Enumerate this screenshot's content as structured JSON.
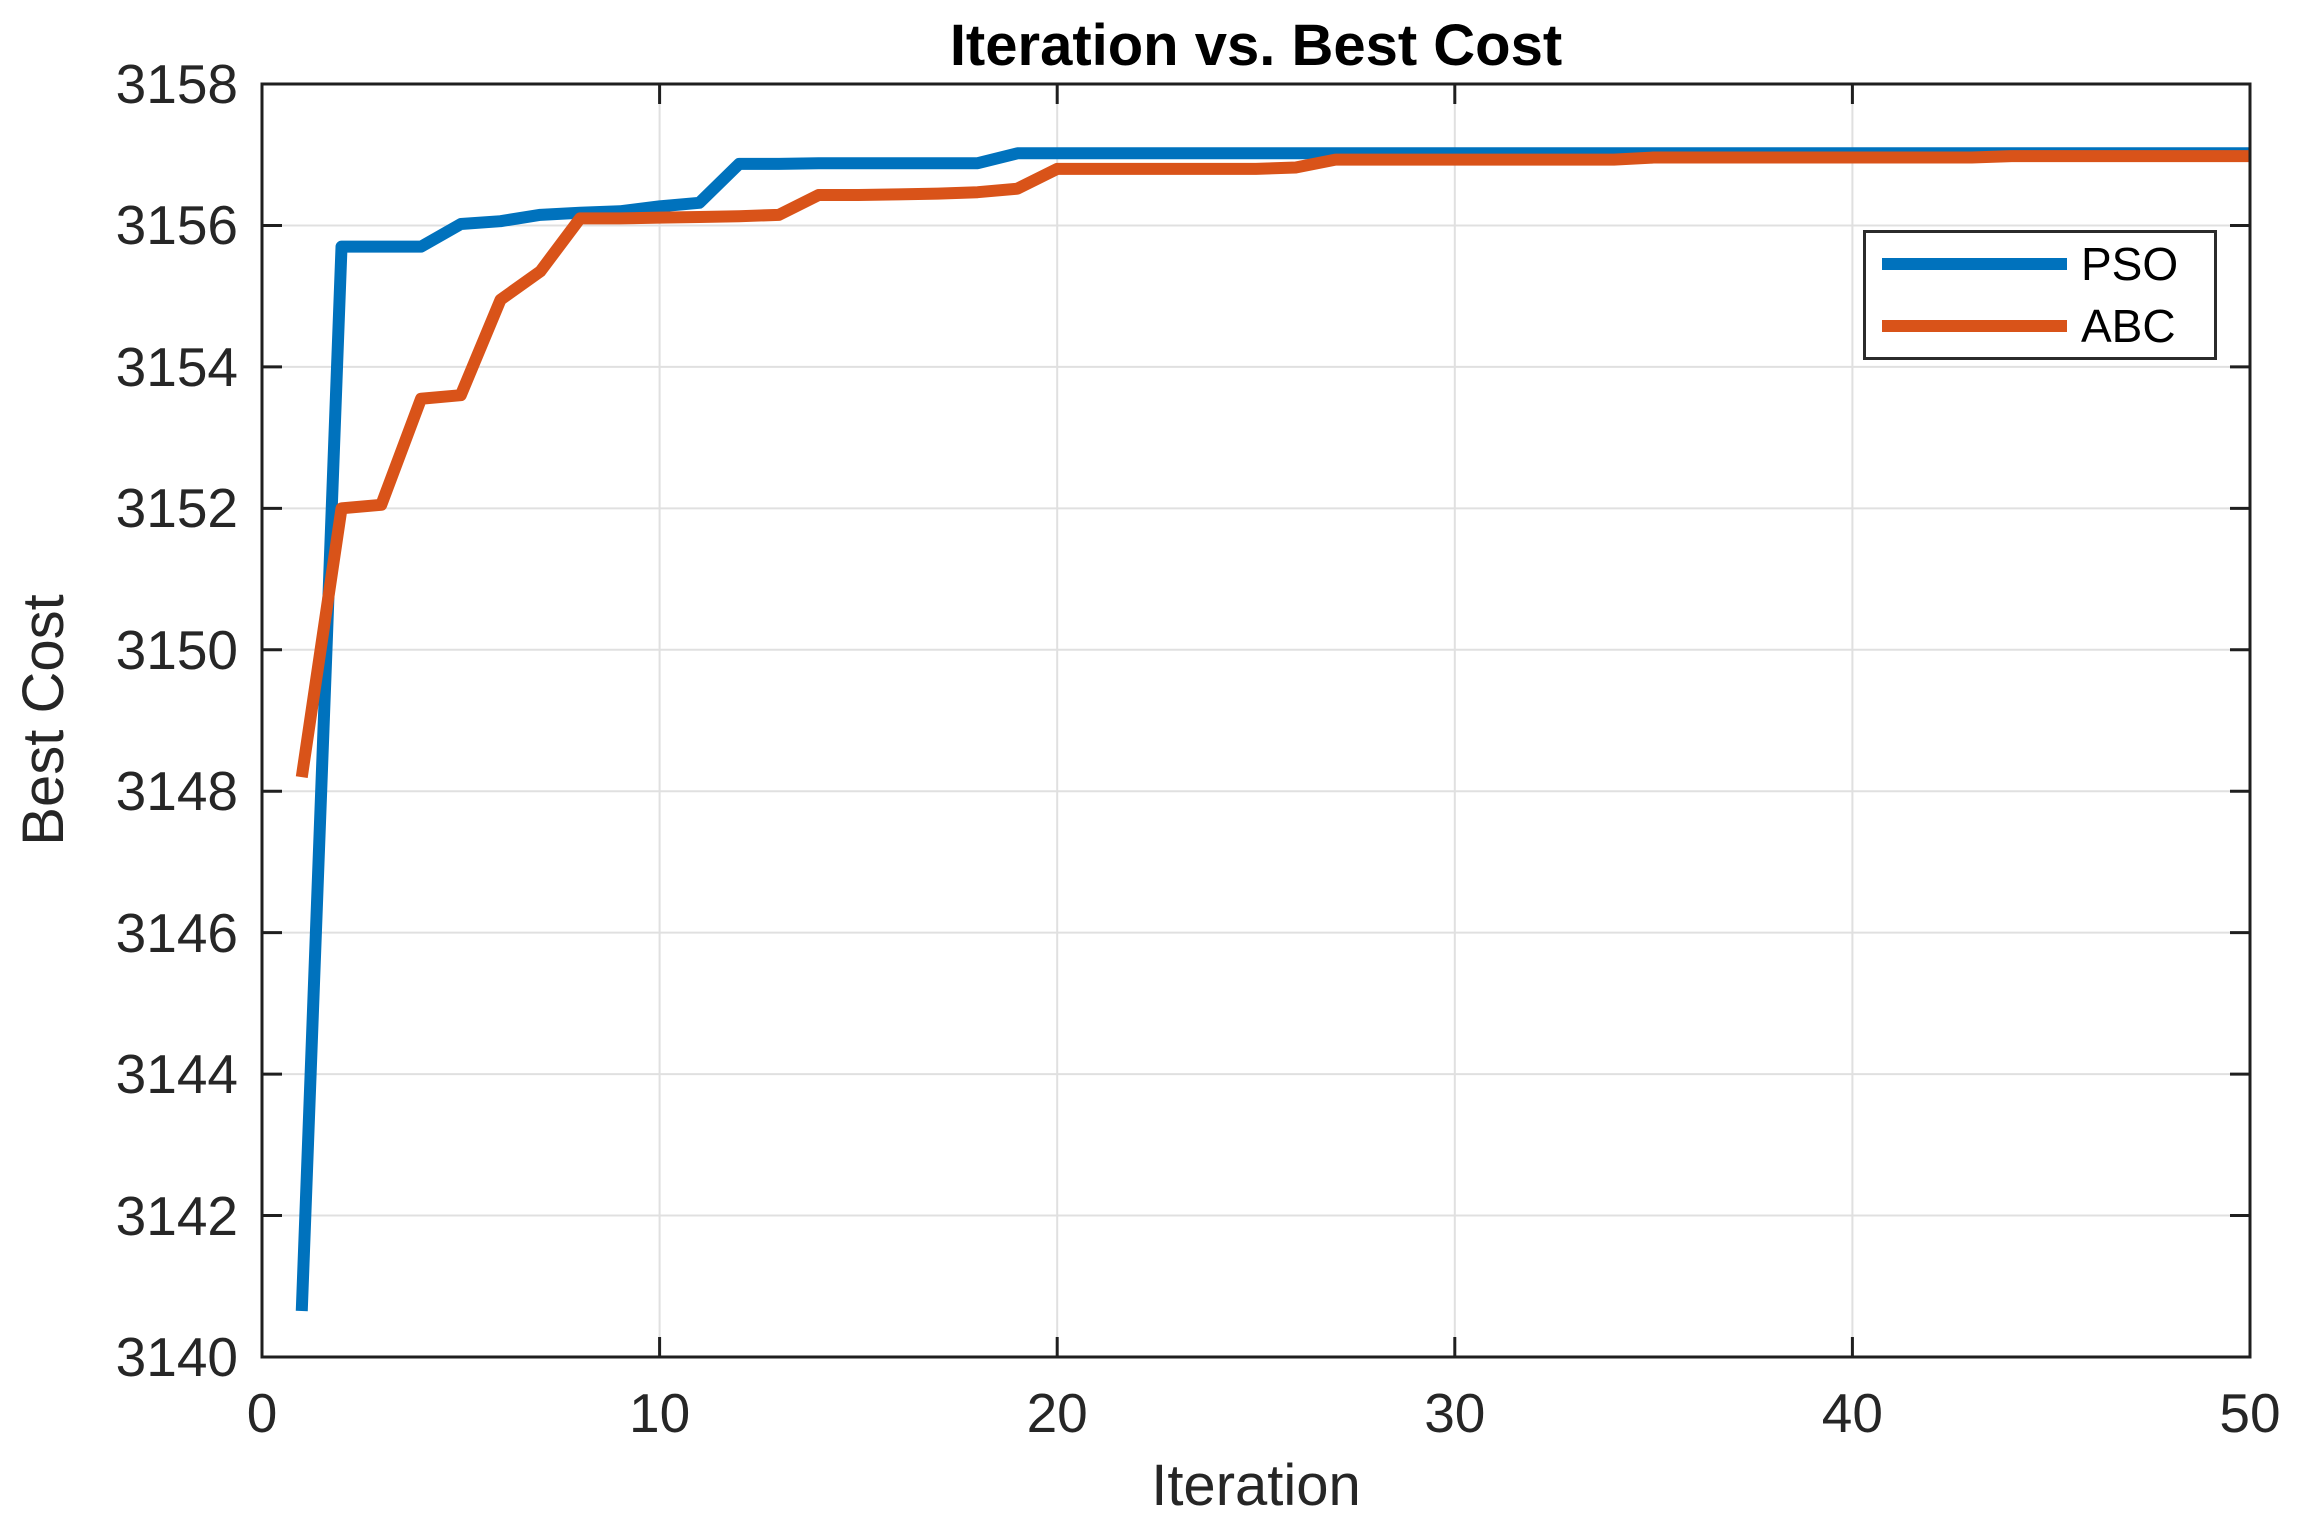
{
  "title": "Iteration vs. Best Cost",
  "axes": {
    "xlabel": "Iteration",
    "ylabel": "Best Cost",
    "x_tick_labels": [
      "0",
      "10",
      "20",
      "30",
      "40",
      "50"
    ],
    "y_tick_labels": [
      "3140",
      "3142",
      "3144",
      "3146",
      "3148",
      "3150",
      "3152",
      "3154",
      "3156",
      "3158"
    ]
  },
  "legend": {
    "position": "top-right",
    "items": [
      {
        "label": "PSO",
        "color": "#0072bd"
      },
      {
        "label": "ABC",
        "color": "#d95319"
      }
    ]
  },
  "chart_data": {
    "type": "line",
    "title": "Iteration vs. Best Cost",
    "xlabel": "Iteration",
    "ylabel": "Best Cost",
    "xlim": [
      0,
      50
    ],
    "ylim": [
      3140,
      3158
    ],
    "x_ticks": [
      0,
      10,
      20,
      30,
      40,
      50
    ],
    "y_ticks": [
      3140,
      3142,
      3144,
      3146,
      3148,
      3150,
      3152,
      3154,
      3156,
      3158
    ],
    "grid": true,
    "legend_position": "top-right",
    "x": [
      1,
      2,
      3,
      4,
      5,
      6,
      7,
      8,
      9,
      10,
      11,
      12,
      13,
      14,
      15,
      16,
      17,
      18,
      19,
      20,
      21,
      22,
      23,
      24,
      25,
      26,
      27,
      28,
      29,
      30,
      31,
      32,
      33,
      34,
      35,
      36,
      37,
      38,
      39,
      40,
      41,
      42,
      43,
      44,
      45,
      46,
      47,
      48,
      49,
      50
    ],
    "series": [
      {
        "name": "PSO",
        "color": "#0072bd",
        "values": [
          3140.65,
          3155.7,
          3155.7,
          3155.7,
          3156.02,
          3156.06,
          3156.15,
          3156.18,
          3156.2,
          3156.27,
          3156.32,
          3156.87,
          3156.87,
          3156.88,
          3156.88,
          3156.88,
          3156.88,
          3156.88,
          3157.02,
          3157.02,
          3157.02,
          3157.02,
          3157.02,
          3157.02,
          3157.02,
          3157.02,
          3157.02,
          3157.02,
          3157.02,
          3157.02,
          3157.02,
          3157.02,
          3157.02,
          3157.02,
          3157.02,
          3157.02,
          3157.02,
          3157.02,
          3157.02,
          3157.02,
          3157.02,
          3157.02,
          3157.02,
          3157.02,
          3157.02,
          3157.02,
          3157.02,
          3157.02,
          3157.02,
          3157.02
        ]
      },
      {
        "name": "ABC",
        "color": "#d95319",
        "values": [
          3148.2,
          3152.0,
          3152.05,
          3153.55,
          3153.6,
          3154.95,
          3155.35,
          3156.1,
          3156.1,
          3156.11,
          3156.12,
          3156.13,
          3156.15,
          3156.43,
          3156.43,
          3156.44,
          3156.45,
          3156.47,
          3156.52,
          3156.8,
          3156.8,
          3156.8,
          3156.8,
          3156.8,
          3156.8,
          3156.82,
          3156.93,
          3156.93,
          3156.93,
          3156.93,
          3156.93,
          3156.93,
          3156.93,
          3156.93,
          3156.96,
          3156.96,
          3156.96,
          3156.96,
          3156.96,
          3156.96,
          3156.96,
          3156.96,
          3156.96,
          3156.98,
          3156.98,
          3156.98,
          3156.98,
          3156.98,
          3156.98,
          3156.98
        ]
      }
    ]
  },
  "style": {
    "grid_color": "#e0e0e0",
    "axis_color": "#1f1f1f",
    "tick_label_color": "#262626",
    "background": "#ffffff"
  }
}
